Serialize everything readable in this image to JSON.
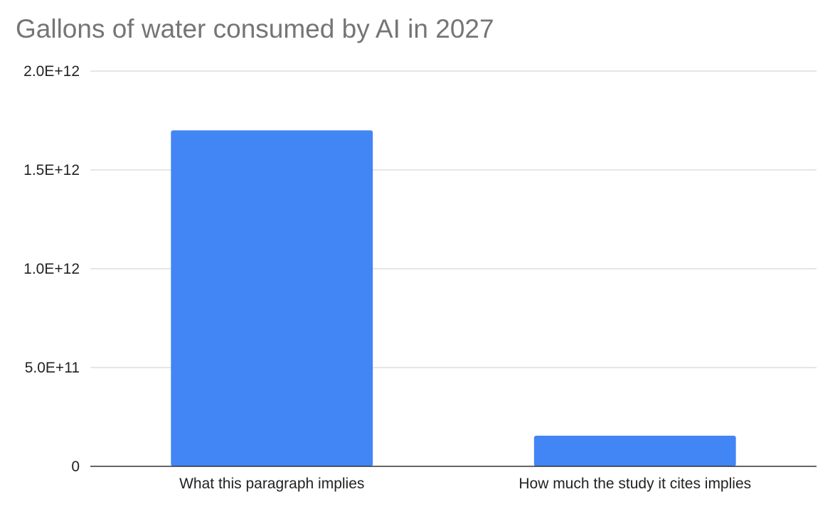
{
  "chart_data": {
    "type": "bar",
    "title": "Gallons of water consumed by AI in 2027",
    "xlabel": "",
    "ylabel": "",
    "categories": [
      "What this paragraph implies",
      "How much the study it cites implies"
    ],
    "values": [
      1700000000000,
      155000000000
    ],
    "ylim": [
      0,
      2000000000000
    ],
    "yticks": [
      {
        "value": 0,
        "label": "0"
      },
      {
        "value": 500000000000,
        "label": "5.0E+11"
      },
      {
        "value": 1000000000000,
        "label": "1.0E+12"
      },
      {
        "value": 1500000000000,
        "label": "1.5E+12"
      },
      {
        "value": 2000000000000,
        "label": "2.0E+12"
      }
    ],
    "grid": true,
    "legend": "none",
    "colors": {
      "bar": "#4285f4",
      "grid": "#cccccc",
      "axis": "#333333",
      "title": "#757575"
    }
  }
}
